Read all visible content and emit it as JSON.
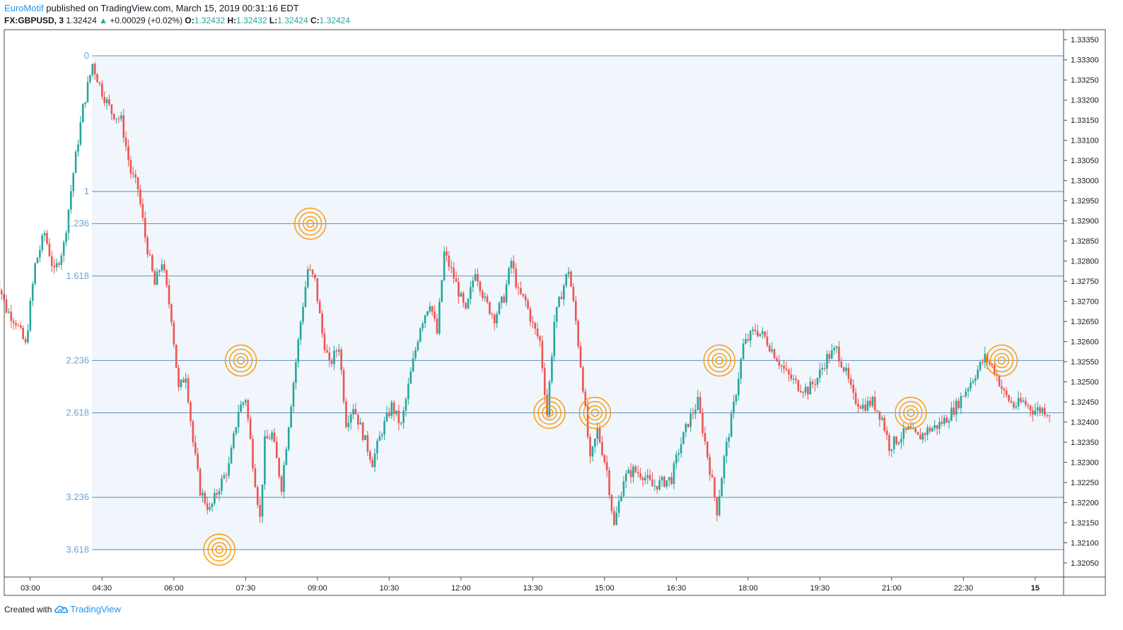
{
  "header": {
    "author": "EuroMotif",
    "published_text": " published on TradingView.com, March 15, 2019 00:31:16 EDT",
    "symbol": "FX:GBPUSD, 3",
    "last": "1.32424",
    "change": "+0.00029 (+0.02%)",
    "o_label": "O:",
    "o_value": "1.32432",
    "h_label": "H:",
    "h_value": "1.32432",
    "l_label": "L:",
    "l_value": "1.32424",
    "c_label": "C:",
    "c_value": "1.32424"
  },
  "footer": {
    "created_with": "Created with",
    "brand": "TradingView"
  },
  "chart_data": {
    "type": "candlestick",
    "colors": {
      "up": "#26a69a",
      "down": "#ef5350",
      "fib_line": "#5b8fc0",
      "fib_label": "#6aa3d6",
      "fib_fill": "#f0f6fc",
      "marker": "#ff9800",
      "axis_text": "#131722",
      "border": "#4a4a4a"
    },
    "ylim": [
      1.32015,
      1.33375
    ],
    "y_ticks": [
      "1.33350",
      "1.33300",
      "1.33250",
      "1.33200",
      "1.33150",
      "1.33100",
      "1.33050",
      "1.33000",
      "1.32950",
      "1.32900",
      "1.32850",
      "1.32800",
      "1.32750",
      "1.32700",
      "1.32650",
      "1.32600",
      "1.32550",
      "1.32500",
      "1.32450",
      "1.32400",
      "1.32350",
      "1.32300",
      "1.32250",
      "1.32200",
      "1.32150",
      "1.32100",
      "1.32050"
    ],
    "x_ticks": [
      "03:00",
      "04:30",
      "06:00",
      "07:30",
      "09:00",
      "10:30",
      "12:00",
      "13:30",
      "15:00",
      "16:30",
      "18:00",
      "19:30",
      "21:00",
      "22:30",
      "15"
    ],
    "fib_levels": [
      {
        "label": "0",
        "price": 1.3331
      },
      {
        "label": "1",
        "price": 1.32973
      },
      {
        "label": "1.236",
        "price": 1.32893
      },
      {
        "label": "1.618",
        "price": 1.32763
      },
      {
        "label": "2.236",
        "price": 1.32553
      },
      {
        "label": "2.618",
        "price": 1.32423
      },
      {
        "label": "3.236",
        "price": 1.32213
      },
      {
        "label": "3.618",
        "price": 1.32083
      }
    ],
    "markers": [
      {
        "x": "06:57",
        "y": 1.32083
      },
      {
        "x": "07:24",
        "y": 1.32553
      },
      {
        "x": "08:51",
        "y": 1.32893
      },
      {
        "x": "13:51",
        "y": 1.32423
      },
      {
        "x": "14:48",
        "y": 1.32423
      },
      {
        "x": "17:24",
        "y": 1.32553
      },
      {
        "x": "21:24",
        "y": 1.32423
      },
      {
        "x": "23:18",
        "y": 1.32553
      }
    ],
    "path": [
      [
        "02:15",
        1.3253
      ],
      [
        "02:21",
        1.3276
      ],
      [
        "02:33",
        1.3268
      ],
      [
        "02:45",
        1.3265
      ],
      [
        "02:57",
        1.3259
      ],
      [
        "03:09",
        1.3279
      ],
      [
        "03:21",
        1.3287
      ],
      [
        "03:33",
        1.3277
      ],
      [
        "03:45",
        1.3284
      ],
      [
        "03:57",
        1.3302
      ],
      [
        "04:09",
        1.3318
      ],
      [
        "04:21",
        1.3329
      ],
      [
        "04:33",
        1.3322
      ],
      [
        "04:45",
        1.3317
      ],
      [
        "04:57",
        1.3315
      ],
      [
        "05:09",
        1.3302
      ],
      [
        "05:18",
        1.3298
      ],
      [
        "05:27",
        1.3286
      ],
      [
        "05:39",
        1.3274
      ],
      [
        "05:48",
        1.328
      ],
      [
        "06:00",
        1.3266
      ],
      [
        "06:09",
        1.3248
      ],
      [
        "06:18",
        1.3252
      ],
      [
        "06:27",
        1.3235
      ],
      [
        "06:36",
        1.3223
      ],
      [
        "06:48",
        1.3218
      ],
      [
        "07:00",
        1.3224
      ],
      [
        "07:12",
        1.3229
      ],
      [
        "07:24",
        1.3243
      ],
      [
        "07:33",
        1.3246
      ],
      [
        "07:42",
        1.323
      ],
      [
        "07:51",
        1.3216
      ],
      [
        "07:57",
        1.3235
      ],
      [
        "08:06",
        1.3237
      ],
      [
        "08:18",
        1.3224
      ],
      [
        "08:30",
        1.3245
      ],
      [
        "08:42",
        1.3265
      ],
      [
        "08:51",
        1.3278
      ],
      [
        "09:00",
        1.3275
      ],
      [
        "09:09",
        1.3262
      ],
      [
        "09:18",
        1.3254
      ],
      [
        "09:30",
        1.3259
      ],
      [
        "09:39",
        1.324
      ],
      [
        "09:48",
        1.3244
      ],
      [
        "10:00",
        1.3237
      ],
      [
        "10:12",
        1.323
      ],
      [
        "10:24",
        1.3238
      ],
      [
        "10:36",
        1.3244
      ],
      [
        "10:48",
        1.3239
      ],
      [
        "11:00",
        1.3252
      ],
      [
        "11:12",
        1.3264
      ],
      [
        "11:24",
        1.327
      ],
      [
        "11:33",
        1.3262
      ],
      [
        "11:42",
        1.3282
      ],
      [
        "11:54",
        1.3276
      ],
      [
        "12:09",
        1.3267
      ],
      [
        "12:21",
        1.3278
      ],
      [
        "12:33",
        1.327
      ],
      [
        "12:45",
        1.3266
      ],
      [
        "12:57",
        1.3271
      ],
      [
        "13:06",
        1.328
      ],
      [
        "13:15",
        1.3272
      ],
      [
        "13:24",
        1.327
      ],
      [
        "13:33",
        1.3264
      ],
      [
        "13:42",
        1.326
      ],
      [
        "13:51",
        1.3242
      ],
      [
        "14:00",
        1.3265
      ],
      [
        "14:09",
        1.3272
      ],
      [
        "14:18",
        1.3278
      ],
      [
        "14:27",
        1.3265
      ],
      [
        "14:36",
        1.3249
      ],
      [
        "14:45",
        1.323
      ],
      [
        "14:54",
        1.3238
      ],
      [
        "15:06",
        1.3228
      ],
      [
        "15:15",
        1.3214
      ],
      [
        "15:27",
        1.3226
      ],
      [
        "15:39",
        1.3228
      ],
      [
        "15:51",
        1.3227
      ],
      [
        "16:03",
        1.3224
      ],
      [
        "16:15",
        1.3225
      ],
      [
        "16:27",
        1.3226
      ],
      [
        "16:36",
        1.3233
      ],
      [
        "16:48",
        1.324
      ],
      [
        "17:00",
        1.3245
      ],
      [
        "17:09",
        1.3235
      ],
      [
        "17:18",
        1.3225
      ],
      [
        "17:24",
        1.3218
      ],
      [
        "17:33",
        1.3231
      ],
      [
        "17:45",
        1.3244
      ],
      [
        "17:57",
        1.3259
      ],
      [
        "18:12",
        1.3263
      ],
      [
        "18:24",
        1.3261
      ],
      [
        "18:36",
        1.3257
      ],
      [
        "18:51",
        1.3252
      ],
      [
        "19:06",
        1.3249
      ],
      [
        "19:18",
        1.3248
      ],
      [
        "19:30",
        1.3251
      ],
      [
        "19:42",
        1.3256
      ],
      [
        "19:54",
        1.3258
      ],
      [
        "20:06",
        1.3252
      ],
      [
        "20:15",
        1.3246
      ],
      [
        "20:27",
        1.3244
      ],
      [
        "20:39",
        1.3245
      ],
      [
        "20:51",
        1.3241
      ],
      [
        "21:00",
        1.3234
      ],
      [
        "21:12",
        1.3236
      ],
      [
        "21:24",
        1.3238
      ],
      [
        "21:36",
        1.3236
      ],
      [
        "21:48",
        1.3238
      ],
      [
        "22:00",
        1.3239
      ],
      [
        "22:12",
        1.3241
      ],
      [
        "22:24",
        1.3244
      ],
      [
        "22:36",
        1.3248
      ],
      [
        "22:48",
        1.3252
      ],
      [
        "23:00",
        1.3256
      ],
      [
        "23:12",
        1.3253
      ],
      [
        "23:24",
        1.3247
      ],
      [
        "23:36",
        1.3244
      ],
      [
        "23:48",
        1.3245
      ],
      [
        "00:00",
        1.3243
      ],
      [
        "00:12",
        1.32432
      ],
      [
        "00:21",
        1.32424
      ]
    ]
  }
}
